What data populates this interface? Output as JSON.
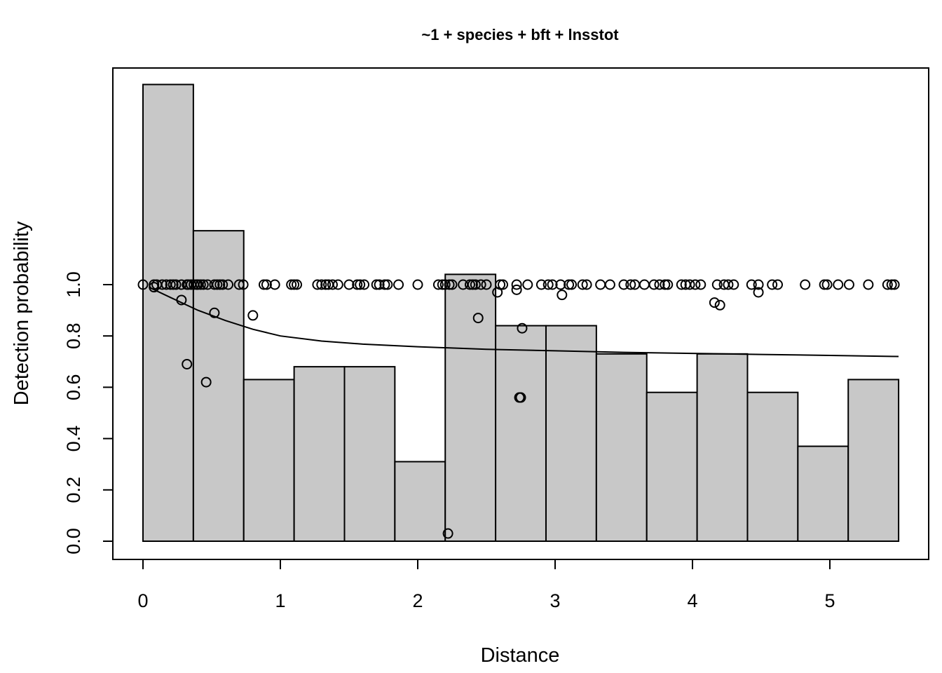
{
  "chart_data": {
    "type": "bar",
    "title": "~1 + species + bft + lnsstot",
    "xlabel": "Distance",
    "ylabel": "Detection probability",
    "xlim": [
      0,
      5.5
    ],
    "ylim": [
      0,
      1.0
    ],
    "x_ticks": [
      "0",
      "1",
      "2",
      "3",
      "4",
      "5"
    ],
    "y_ticks": [
      "0.0",
      "0.2",
      "0.4",
      "0.6",
      "0.8",
      "1.0"
    ],
    "grid": false,
    "legend": "none",
    "histogram": {
      "bin_width": 0.3667,
      "values": [
        1.78,
        1.21,
        0.63,
        0.68,
        0.68,
        0.31,
        1.04,
        0.84,
        0.84,
        0.73,
        0.58,
        0.73,
        0.58,
        0.37,
        0.63
      ]
    },
    "fitted_curve": {
      "x": [
        0.05,
        0.2,
        0.4,
        0.6,
        0.8,
        1.0,
        1.3,
        1.6,
        2.0,
        2.5,
        3.0,
        3.5,
        4.0,
        4.5,
        5.0,
        5.5
      ],
      "y": [
        0.988,
        0.95,
        0.9,
        0.86,
        0.826,
        0.8,
        0.78,
        0.768,
        0.758,
        0.748,
        0.742,
        0.736,
        0.732,
        0.728,
        0.724,
        0.72
      ]
    },
    "points": {
      "x": [
        0.0,
        0.08,
        0.1,
        0.14,
        0.17,
        0.2,
        0.22,
        0.24,
        0.28,
        0.32,
        0.33,
        0.35,
        0.37,
        0.39,
        0.4,
        0.42,
        0.44,
        0.47,
        0.52,
        0.54,
        0.56,
        0.58,
        0.62,
        0.7,
        0.73,
        0.88,
        0.9,
        0.96,
        1.08,
        1.1,
        1.12,
        1.27,
        1.3,
        1.33,
        1.35,
        1.38,
        1.42,
        1.5,
        1.56,
        1.58,
        1.61,
        1.7,
        1.72,
        1.76,
        1.78,
        1.86,
        2.0,
        2.15,
        2.18,
        2.2,
        2.23,
        2.25,
        2.33,
        2.38,
        2.4,
        2.42,
        2.46,
        2.5,
        2.6,
        2.62,
        2.72,
        2.8,
        2.9,
        2.95,
        2.98,
        3.04,
        3.1,
        3.12,
        3.2,
        3.23,
        3.33,
        3.4,
        3.5,
        3.55,
        3.58,
        3.65,
        3.72,
        3.76,
        3.8,
        3.82,
        3.92,
        3.95,
        3.98,
        4.02,
        4.06,
        4.18,
        4.23,
        4.26,
        4.3,
        4.43,
        4.48,
        4.58,
        4.62,
        4.82,
        4.96,
        4.98,
        5.06,
        5.14,
        5.28,
        5.42,
        5.45,
        5.47,
        0.08,
        0.28,
        0.32,
        0.46,
        0.52,
        0.8,
        2.22,
        2.44,
        2.58,
        2.72,
        2.74,
        2.75,
        2.76,
        3.05,
        4.16,
        4.2,
        4.48
      ],
      "y": [
        1.0,
        1.0,
        1.0,
        1.0,
        1.0,
        1.0,
        1.0,
        1.0,
        1.0,
        1.0,
        1.0,
        1.0,
        1.0,
        1.0,
        1.0,
        1.0,
        1.0,
        1.0,
        1.0,
        1.0,
        1.0,
        1.0,
        1.0,
        1.0,
        1.0,
        1.0,
        1.0,
        1.0,
        1.0,
        1.0,
        1.0,
        1.0,
        1.0,
        1.0,
        1.0,
        1.0,
        1.0,
        1.0,
        1.0,
        1.0,
        1.0,
        1.0,
        1.0,
        1.0,
        1.0,
        1.0,
        1.0,
        1.0,
        1.0,
        1.0,
        1.0,
        1.0,
        1.0,
        1.0,
        1.0,
        1.0,
        1.0,
        1.0,
        1.0,
        1.0,
        1.0,
        1.0,
        1.0,
        1.0,
        1.0,
        1.0,
        1.0,
        1.0,
        1.0,
        1.0,
        1.0,
        1.0,
        1.0,
        1.0,
        1.0,
        1.0,
        1.0,
        1.0,
        1.0,
        1.0,
        1.0,
        1.0,
        1.0,
        1.0,
        1.0,
        1.0,
        1.0,
        1.0,
        1.0,
        1.0,
        1.0,
        1.0,
        1.0,
        1.0,
        1.0,
        1.0,
        1.0,
        1.0,
        1.0,
        1.0,
        1.0,
        1.0,
        0.99,
        0.94,
        0.69,
        0.62,
        0.89,
        0.88,
        0.03,
        0.87,
        0.97,
        0.98,
        0.56,
        0.56,
        0.83,
        0.96,
        0.93,
        0.92,
        0.97
      ]
    },
    "colors": {
      "bar_fill": "#c8c8c8",
      "stroke": "#000000",
      "background": "#ffffff"
    }
  }
}
